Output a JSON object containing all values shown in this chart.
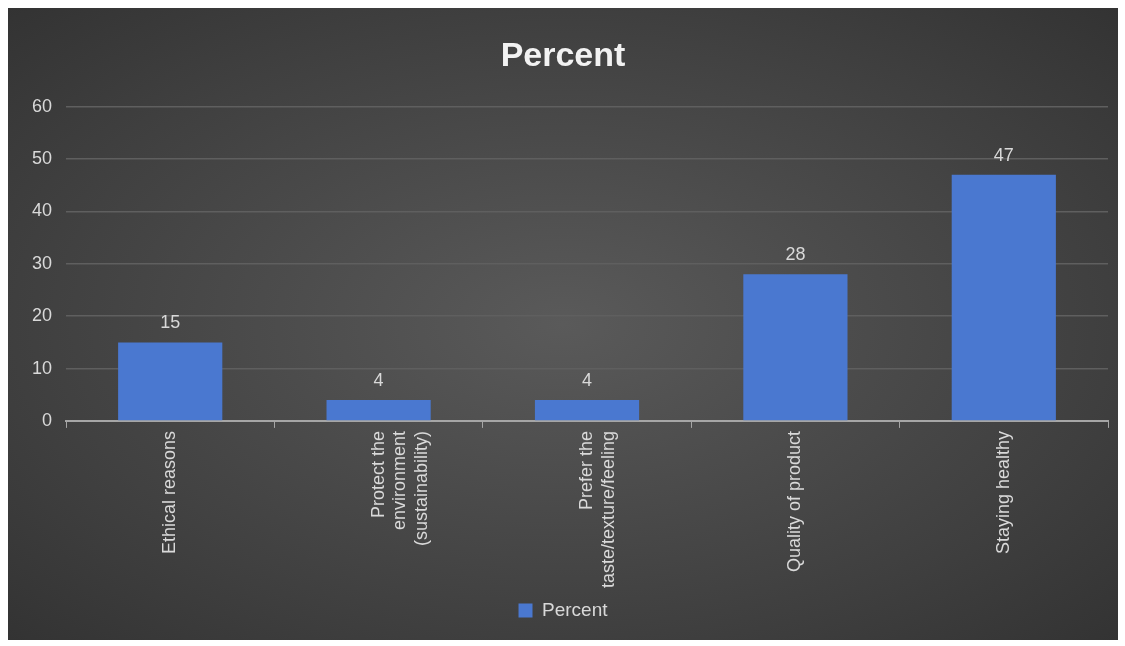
{
  "chart_data": {
    "type": "bar",
    "title": "Percent",
    "categories": [
      "Ethical reasons",
      "Protect the environment (sustainability)",
      "Prefer the taste/texture/feeling",
      "Quality of product",
      "Staying healthy"
    ],
    "series": [
      {
        "name": "Percent",
        "color": "#4a78d0",
        "values": [
          15,
          4,
          4,
          28,
          47
        ]
      }
    ],
    "ylim": [
      0,
      60
    ],
    "yticks": [
      0,
      10,
      20,
      30,
      40,
      50,
      60
    ],
    "grid": "y",
    "legend": "bottom",
    "data_labels": true
  }
}
